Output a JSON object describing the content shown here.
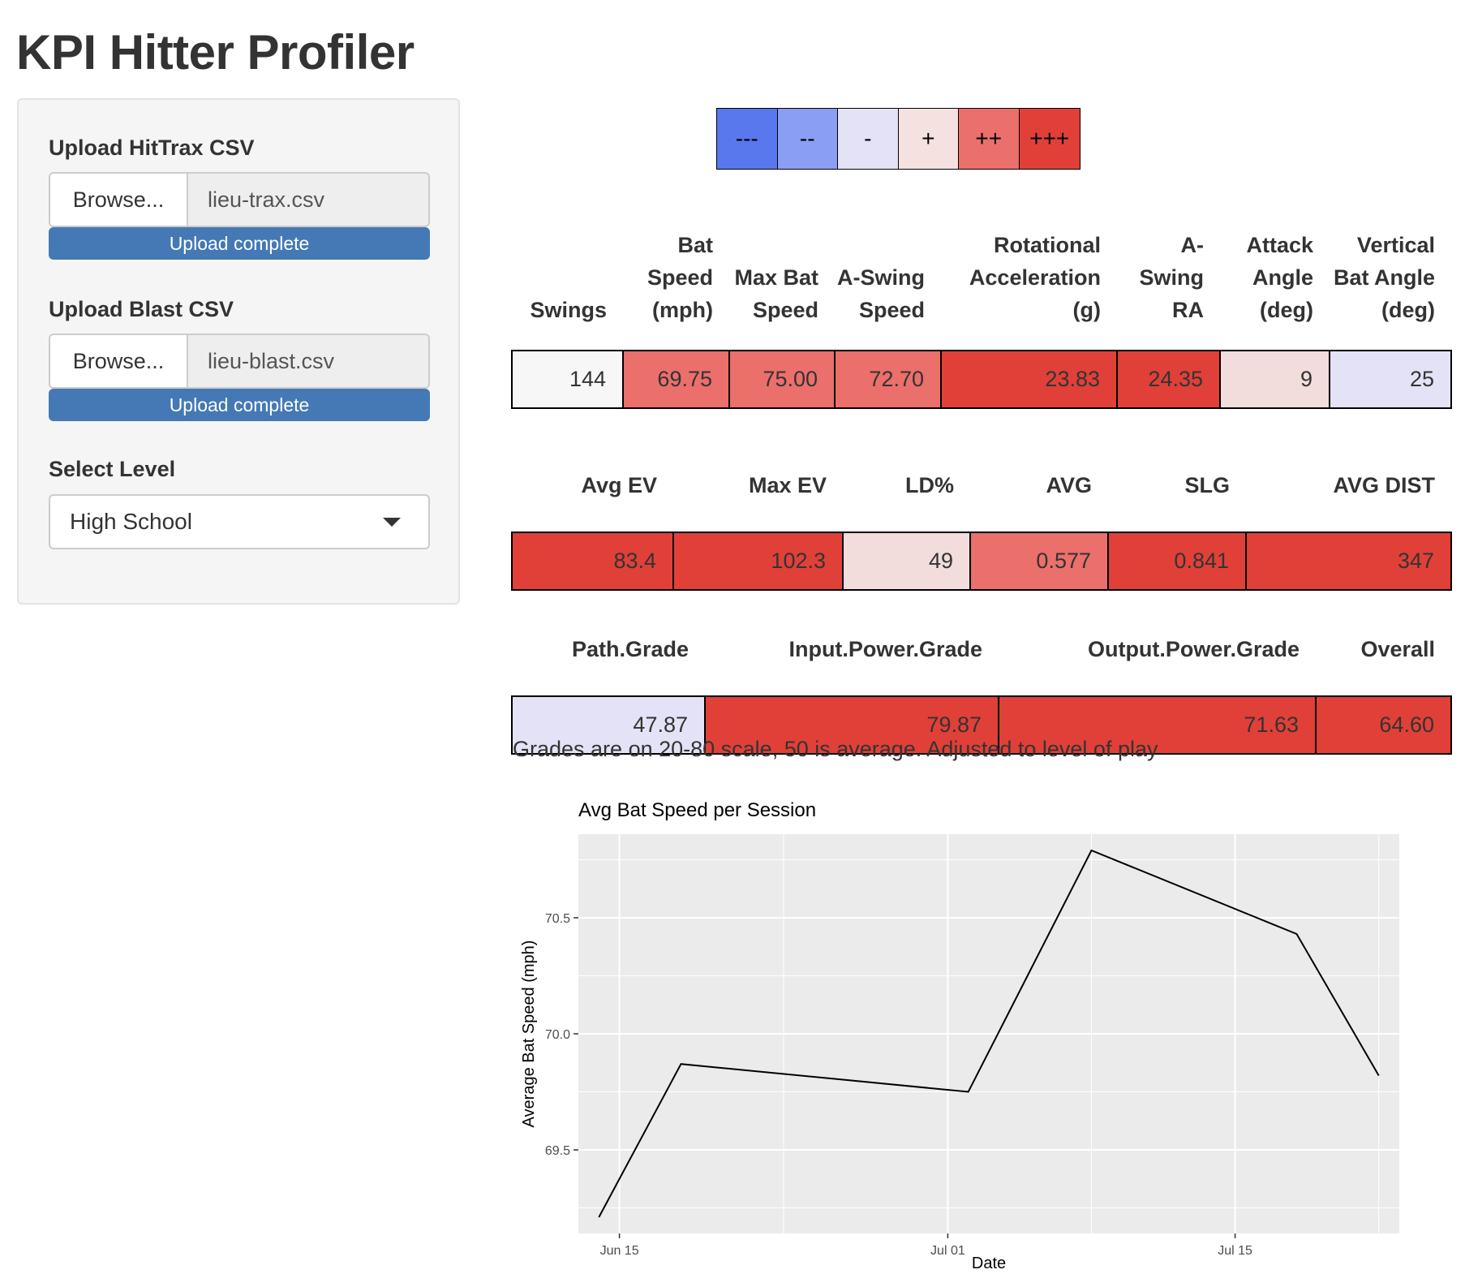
{
  "app": {
    "title": "KPI Hitter Profiler"
  },
  "sidebar": {
    "hittrax": {
      "label": "Upload HitTrax CSV",
      "browse": "Browse...",
      "file": "lieu-trax.csv",
      "status": "Upload complete",
      "progress": 1.0
    },
    "blast": {
      "label": "Upload Blast CSV",
      "browse": "Browse...",
      "file": "lieu-blast.csv",
      "status": "Upload complete",
      "progress": 1.0
    },
    "level": {
      "label": "Select Level",
      "value": "High School"
    }
  },
  "legend": [
    {
      "label": "---",
      "color": "#5a78ee"
    },
    {
      "label": "--",
      "color": "#8a9ef4"
    },
    {
      "label": "-",
      "color": "#e4e2f6"
    },
    {
      "label": "+",
      "color": "#f6e1e1"
    },
    {
      "label": "++",
      "color": "#eb6f6b"
    },
    {
      "label": "+++",
      "color": "#e04038"
    }
  ],
  "tables": {
    "blast": {
      "headers": [
        "Swings",
        "Bat Speed (mph)",
        "Max Bat Speed",
        "A-Swing Speed",
        "Rotational Acceleration (g)",
        "A-Swing RA",
        "Attack Angle (deg)",
        "Vertical Bat Angle (deg)"
      ],
      "values": [
        "144",
        "69.75",
        "75.00",
        "72.70",
        "23.83",
        "24.35",
        "9",
        "25"
      ],
      "colors": [
        "#f7f7f7",
        "#eb6f6b",
        "#eb6f6b",
        "#eb6f6b",
        "#e04038",
        "#e04038",
        "#f2dcdc",
        "#e4e2f6"
      ]
    },
    "hittrax": {
      "headers": [
        "Avg EV",
        "Max EV",
        "LD%",
        "AVG",
        "SLG",
        "AVG DIST"
      ],
      "values": [
        "83.4",
        "102.3",
        "49",
        "0.577",
        "0.841",
        "347"
      ],
      "colors": [
        "#e04038",
        "#e04038",
        "#f2dcdc",
        "#eb6f6b",
        "#e04038",
        "#e04038"
      ]
    },
    "grades": {
      "headers": [
        "Path.Grade",
        "Input.Power.Grade",
        "Output.Power.Grade",
        "Overall"
      ],
      "values": [
        "47.87",
        "79.87",
        "71.63",
        "64.60"
      ],
      "colors": [
        "#e4e2f6",
        "#e04038",
        "#e04038",
        "#e04038"
      ]
    }
  },
  "note": "Grades are on 20-80 scale, 50 is average. Adjusted to level of play",
  "chart_data": {
    "type": "line",
    "title": "Avg Bat Speed per Session",
    "xlabel": "Date",
    "ylabel": "Average Bat Speed (mph)",
    "x": [
      "2023-06-14",
      "2023-06-18",
      "2023-07-02",
      "2023-07-08",
      "2023-07-18",
      "2023-07-22"
    ],
    "values": [
      69.21,
      69.87,
      69.75,
      70.79,
      70.43,
      69.82
    ],
    "x_ticks": [
      {
        "date": "2023-06-15",
        "label": "Jun 15"
      },
      {
        "date": "2023-07-01",
        "label": "Jul 01"
      },
      {
        "date": "2023-07-15",
        "label": "Jul 15"
      }
    ],
    "y_ticks": [
      69.5,
      70.0,
      70.5
    ],
    "xlim": [
      "2023-06-13",
      "2023-07-23"
    ],
    "ylim": [
      69.14,
      70.86
    ],
    "grid": true,
    "line_color": "#000000",
    "panel_color": "#ebebeb"
  }
}
